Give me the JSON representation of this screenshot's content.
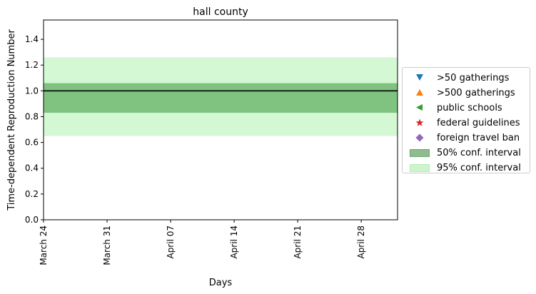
{
  "chart_data": {
    "type": "line",
    "title": "hall county",
    "xlabel": "Days",
    "ylabel": "Time-dependent Reproduction Number",
    "x_range": [
      "2020-03-24",
      "2020-05-02"
    ],
    "xticks": [
      "March 24",
      "March 31",
      "April 07",
      "April 14",
      "April 21",
      "April 28"
    ],
    "xtick_dates": [
      "2020-03-24",
      "2020-03-31",
      "2020-04-07",
      "2020-04-14",
      "2020-04-21",
      "2020-04-28"
    ],
    "ylim": [
      0,
      1.55
    ],
    "yticks": [
      0.0,
      0.2,
      0.4,
      0.6,
      0.8,
      1.0,
      1.2,
      1.4
    ],
    "grid": false,
    "reference_line": {
      "y": 1.0,
      "color": "#000000"
    },
    "bands": [
      {
        "name": "95% conf. interval",
        "lower": 0.65,
        "upper": 1.26,
        "color": "#90ee90",
        "opacity": 0.4
      },
      {
        "name": "50% conf. interval",
        "lower": 0.83,
        "upper": 1.06,
        "color": "#2e8b2e",
        "opacity": 0.5
      }
    ],
    "legend_position": "center-right",
    "legend": [
      {
        "label": ">50 gatherings",
        "marker": "triangle-down",
        "color": "#1f77b4"
      },
      {
        "label": ">500 gatherings",
        "marker": "triangle-up",
        "color": "#ff7f0e"
      },
      {
        "label": "public schools",
        "marker": "triangle-left",
        "color": "#2ca02c"
      },
      {
        "label": "federal guidelines",
        "marker": "star",
        "color": "#d62728"
      },
      {
        "label": "foreign travel ban",
        "marker": "diamond",
        "color": "#9467bd"
      },
      {
        "label": "50% conf. interval",
        "marker": "patch",
        "color": "#8fbc8f"
      },
      {
        "label": "95% conf. interval",
        "marker": "patch",
        "color": "#ccf5cc"
      }
    ]
  }
}
